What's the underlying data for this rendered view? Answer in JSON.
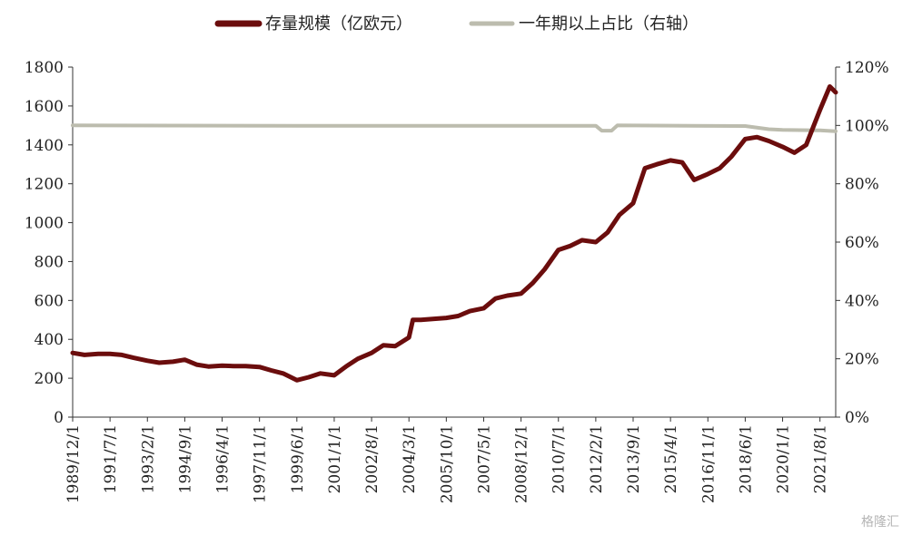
{
  "chart_data": {
    "type": "line",
    "legend_position": "top-center",
    "grid": false,
    "series": [
      {
        "name": "存量规模（亿欧元）",
        "axis": "left",
        "color": "#6b0d0d",
        "x": [
          "1989/12/1",
          "1990/6/1",
          "1991/1/1",
          "1991/7/1",
          "1992/1/1",
          "1992/7/1",
          "1993/2/1",
          "1993/8/1",
          "1994/3/1",
          "1994/9/1",
          "1995/3/1",
          "1995/9/1",
          "1996/4/1",
          "1996/10/1",
          "1997/4/1",
          "1997/11/1",
          "1998/5/1",
          "1998/11/1",
          "1999/6/1",
          "1999/12/1",
          "2000/6/1",
          "2001/1/1",
          "2001/7/1",
          "2002/1/1",
          "2002/8/1",
          "2003/2/1",
          "2003/8/1",
          "2004/3/1",
          "2004/5/1",
          "2004/9/1",
          "2005/3/1",
          "2005/10/1",
          "2006/4/1",
          "2006/10/1",
          "2007/5/1",
          "2007/11/1",
          "2008/5/1",
          "2008/12/1",
          "2009/6/1",
          "2009/12/1",
          "2010/7/1",
          "2011/1/1",
          "2011/7/1",
          "2012/2/1",
          "2012/8/1",
          "2013/2/1",
          "2013/9/1",
          "2014/3/1",
          "2014/9/1",
          "2015/4/1",
          "2015/10/1",
          "2016/4/1",
          "2016/11/1",
          "2017/5/1",
          "2017/11/1",
          "2018/6/1",
          "2018/12/1",
          "2019/6/1",
          "2020/1/1",
          "2020/7/1",
          "2021/1/1",
          "2021/8/1",
          "2022/1/1",
          "2022/4/1"
        ],
        "values": [
          330,
          320,
          325,
          325,
          320,
          305,
          290,
          280,
          285,
          295,
          270,
          260,
          265,
          262,
          262,
          258,
          240,
          225,
          190,
          205,
          225,
          215,
          260,
          300,
          330,
          370,
          365,
          410,
          500,
          500,
          505,
          510,
          520,
          545,
          560,
          610,
          625,
          635,
          690,
          760,
          860,
          880,
          910,
          900,
          950,
          1040,
          1100,
          1280,
          1300,
          1320,
          1310,
          1220,
          1250,
          1280,
          1340,
          1430,
          1440,
          1420,
          1390,
          1360,
          1400,
          1580,
          1700,
          1670
        ]
      },
      {
        "name": "一年期以上占比（右轴）",
        "axis": "right",
        "color": "#bcbcae",
        "x": [
          "1989/12/1",
          "1999/6/1",
          "2012/2/1",
          "2012/5/1",
          "2012/10/1",
          "2013/1/1",
          "2018/6/1",
          "2019/6/1",
          "2020/1/1",
          "2021/8/1",
          "2022/4/1"
        ],
        "values": [
          100,
          99.9,
          99.9,
          98.2,
          98.2,
          100,
          99.8,
          98.7,
          98.5,
          98.3,
          98.0
        ]
      }
    ],
    "x_tick_labels": [
      "1989/12/1",
      "1991/7/1",
      "1993/2/1",
      "1994/9/1",
      "1996/4/1",
      "1997/11/1",
      "1999/6/1",
      "2001/1/1",
      "2002/8/1",
      "2004/3/1",
      "2005/10/1",
      "2007/5/1",
      "2008/12/1",
      "2010/7/1",
      "2012/2/1",
      "2013/9/1",
      "2015/4/1",
      "2016/11/1",
      "2018/6/1",
      "2020/1/1",
      "2021/8/1"
    ],
    "x_range": [
      "1989/12/1",
      "2022/4/1"
    ],
    "y_left": {
      "ylim": [
        0,
        1800
      ],
      "ticks": [
        "0",
        "200",
        "400",
        "600",
        "800",
        "1000",
        "1200",
        "1400",
        "1600",
        "1800"
      ]
    },
    "y_right": {
      "ylim": [
        0,
        120
      ],
      "ticks": [
        "0%",
        "20%",
        "40%",
        "60%",
        "80%",
        "100%",
        "120%"
      ]
    }
  },
  "watermark": "格隆汇"
}
